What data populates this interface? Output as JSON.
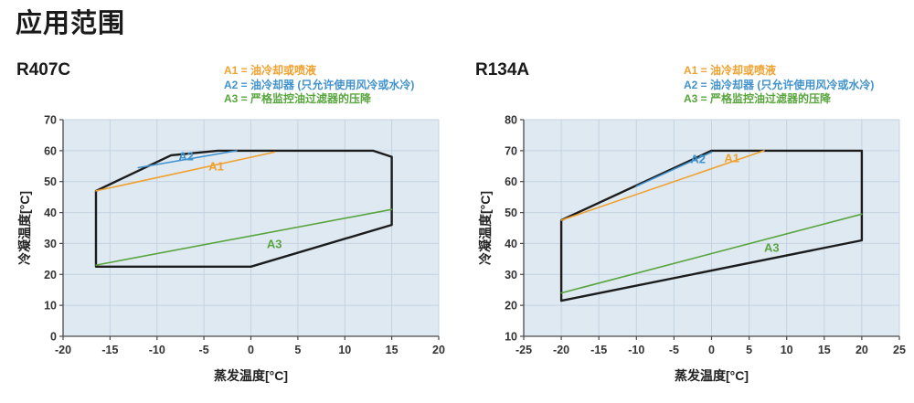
{
  "page": {
    "title": "应用范围"
  },
  "colors": {
    "a1": "#F0A12F",
    "a2": "#4292CC",
    "a3": "#58A53E",
    "envelope": "#1C1C1C",
    "plot_bg": "#DFE9F2",
    "grid": "#C4D3E2",
    "axis": "#4A4A4A"
  },
  "legend": {
    "items": [
      {
        "name": "A1",
        "label": "A1 = 油冷却或喷液",
        "color_key": "a1"
      },
      {
        "name": "A2",
        "label": "A2 = 油冷却器 (只允许使用风冷或水冷)",
        "color_key": "a2"
      },
      {
        "name": "A3",
        "label": "A3 = 严格监控油过滤器的压降",
        "color_key": "a3"
      }
    ]
  },
  "chart_data": [
    {
      "type": "line",
      "title": "R407C",
      "xlabel": "蒸发温度[°C]",
      "ylabel": "冷凝温度[°C]",
      "xlim": [
        -20,
        20
      ],
      "ylim": [
        0,
        70
      ],
      "xticks": [
        -20,
        -15,
        -10,
        -5,
        0,
        5,
        10,
        15,
        20
      ],
      "yticks": [
        0,
        10,
        20,
        30,
        40,
        50,
        60,
        70
      ],
      "grid": true,
      "legend_position": "top",
      "series": [
        {
          "name": "envelope",
          "closed": true,
          "color_key": "envelope",
          "width": 2.4,
          "points": [
            [
              -16.5,
              47
            ],
            [
              -8.5,
              58.5
            ],
            [
              -3.5,
              60
            ],
            [
              13,
              60
            ],
            [
              15,
              58
            ],
            [
              15,
              36
            ],
            [
              0,
              22.5
            ],
            [
              -16.5,
              22.5
            ]
          ]
        },
        {
          "name": "A1",
          "color_key": "a1",
          "width": 1.6,
          "points": [
            [
              -16.5,
              47
            ],
            [
              2.5,
              59.5
            ]
          ],
          "label_at": [
            -3.7,
            55.0
          ]
        },
        {
          "name": "A2",
          "color_key": "a2",
          "width": 1.6,
          "points": [
            [
              -12,
              54.5
            ],
            [
              -1.5,
              60
            ]
          ],
          "label_at": [
            -6.9,
            58.2
          ]
        },
        {
          "name": "A3",
          "color_key": "a3",
          "width": 1.6,
          "points": [
            [
              -16.5,
              23
            ],
            [
              15,
              41
            ]
          ],
          "label_at": [
            2.5,
            29.8
          ]
        }
      ]
    },
    {
      "type": "line",
      "title": "R134A",
      "xlabel": "蒸发温度[°C]",
      "ylabel": "冷凝温度[°C]",
      "xlim": [
        -25,
        25
      ],
      "ylim": [
        10,
        80
      ],
      "xticks": [
        -25,
        -20,
        -15,
        -10,
        -5,
        0,
        5,
        10,
        15,
        20,
        25
      ],
      "yticks": [
        10,
        20,
        30,
        40,
        50,
        60,
        70,
        80
      ],
      "grid": true,
      "legend_position": "top",
      "series": [
        {
          "name": "envelope",
          "closed": true,
          "color_key": "envelope",
          "width": 2.4,
          "points": [
            [
              -20,
              47.5
            ],
            [
              0,
              70
            ],
            [
              20,
              70
            ],
            [
              20,
              41
            ],
            [
              -20,
              21.5
            ]
          ]
        },
        {
          "name": "A1",
          "color_key": "a1",
          "width": 1.6,
          "points": [
            [
              -20,
              47.5
            ],
            [
              7,
              70
            ]
          ],
          "label_at": [
            2.7,
            67.6
          ]
        },
        {
          "name": "A2",
          "color_key": "a2",
          "width": 1.6,
          "points": [
            [
              -10,
              58.5
            ],
            [
              0,
              69.5
            ]
          ],
          "label_at": [
            -1.8,
            67.3
          ]
        },
        {
          "name": "A3",
          "color_key": "a3",
          "width": 1.6,
          "points": [
            [
              -20,
              24
            ],
            [
              20,
              49.5
            ]
          ],
          "label_at": [
            8,
            38.6
          ]
        }
      ]
    }
  ]
}
